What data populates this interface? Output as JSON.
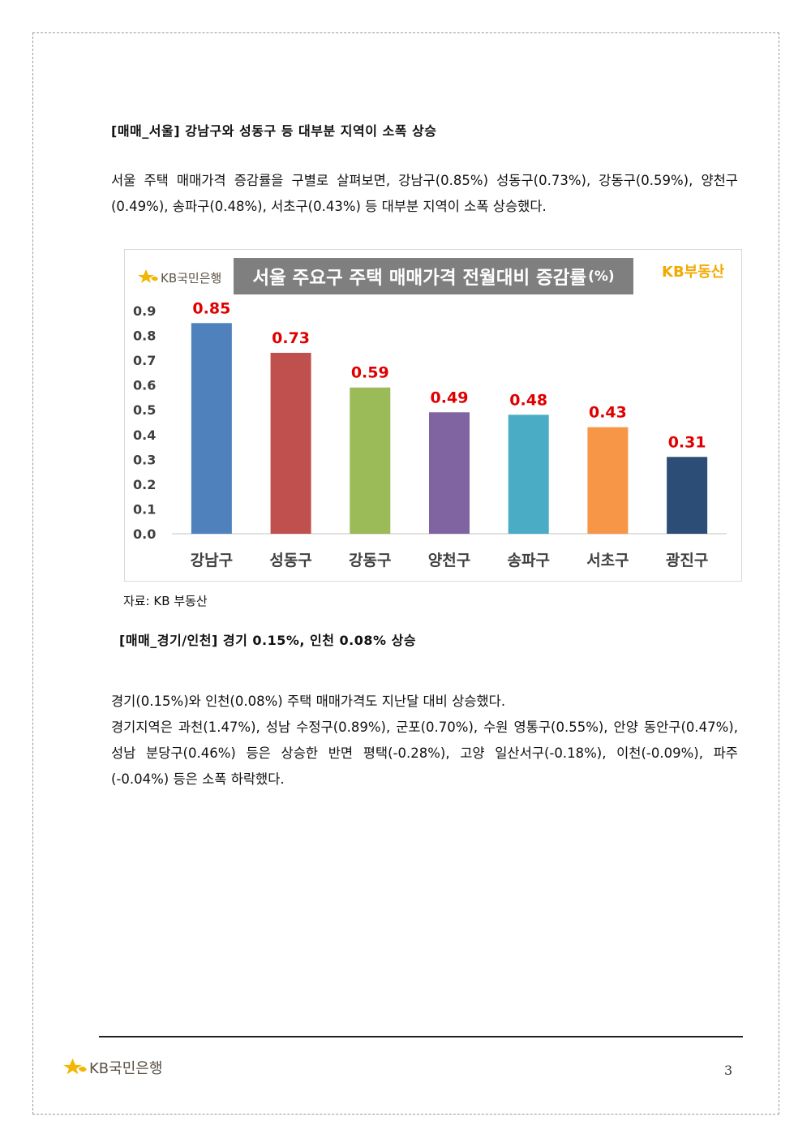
{
  "section1": {
    "heading": "[매매_서울] 강남구와 성동구 등 대부분 지역이 소폭 상승",
    "paragraph": "서울 주택 매매가격 증감률을 구별로 살펴보면, 강남구(0.85%) 성동구(0.73%), 강동구(0.59%), 양천구(0.49%), 송파구(0.48%), 서초구(0.43%) 등 대부분 지역이 소폭 상승했다."
  },
  "chart_header": {
    "logo_text": "KB국민은행",
    "logo_icon": "kb-star-icon",
    "title_main": "서울 주요구 주택 매매가격 전월대비 증감률",
    "title_unit": "(%)",
    "brand": "KB부동산"
  },
  "chart_data": {
    "type": "bar",
    "title": "서울 주요구 주택 매매가격 전월대비 증감률(%)",
    "categories": [
      "강남구",
      "성동구",
      "강동구",
      "양천구",
      "송파구",
      "서초구",
      "광진구"
    ],
    "values": [
      0.85,
      0.73,
      0.59,
      0.49,
      0.48,
      0.43,
      0.31
    ],
    "value_labels": [
      "0.85",
      "0.73",
      "0.59",
      "0.49",
      "0.48",
      "0.43",
      "0.31"
    ],
    "colors": [
      "#4f81bd",
      "#c0504d",
      "#9bbb59",
      "#8064a2",
      "#4bacc6",
      "#f79646",
      "#2c4d75"
    ],
    "data_label_color": "#e00000",
    "ylim": [
      0,
      0.9
    ],
    "yticks": [
      "0.0",
      "0.1",
      "0.2",
      "0.3",
      "0.4",
      "0.5",
      "0.6",
      "0.7",
      "0.8",
      "0.9"
    ],
    "xlabel": "",
    "ylabel": "",
    "grid": false
  },
  "source_note": "자료: KB 부동산",
  "section2": {
    "heading": "[매매_경기/인천] 경기 0.15%, 인천 0.08% 상승",
    "line1": "경기(0.15%)와 인천(0.08%) 주택 매매가격도 지난달 대비 상승했다.",
    "line2": "경기지역은 과천(1.47%), 성남 수정구(0.89%), 군포(0.70%), 수원 영통구(0.55%), 안양 동안구(0.47%), 성남 분당구(0.46%) 등은 상승한 반면 평택(-0.28%), 고양 일산서구(-0.18%), 이천(-0.09%), 파주(-0.04%) 등은 소폭 하락했다."
  },
  "footer": {
    "logo_text": "KB국민은행",
    "logo_icon": "kb-star-icon",
    "page_number": "3"
  }
}
